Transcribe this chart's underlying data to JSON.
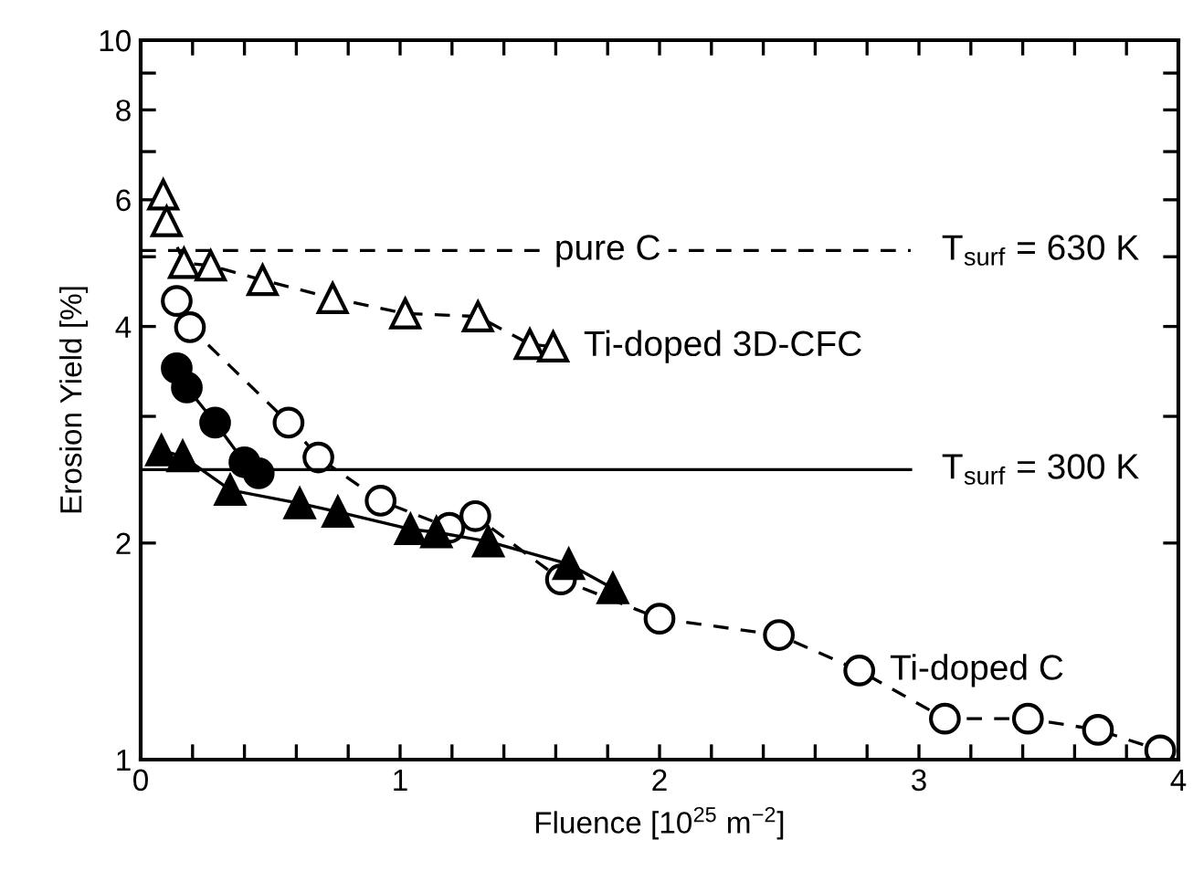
{
  "chart_data": {
    "type": "line",
    "xlabel": "Fluence [10$^{25}$ m$^{−2}$]",
    "ylabel": "Erosion Yield [%]",
    "log": "y",
    "grid": false,
    "xlim": [
      0,
      4
    ],
    "xticks": [
      0,
      {
        "value": 0.2,
        "label": null
      },
      {
        "value": 0.4,
        "label": null
      },
      {
        "value": 0.6,
        "label": null
      },
      {
        "value": 0.8,
        "label": null
      },
      1,
      {
        "value": 1.2,
        "label": null
      },
      {
        "value": 1.4,
        "label": null
      },
      {
        "value": 1.6,
        "label": null
      },
      {
        "value": 1.8,
        "label": null
      },
      2,
      {
        "value": 2.2,
        "label": null
      },
      {
        "value": 2.4,
        "label": null
      },
      {
        "value": 2.6,
        "label": null
      },
      {
        "value": 2.8,
        "label": null
      },
      3,
      {
        "value": 3.2,
        "label": null
      },
      {
        "value": 3.4,
        "label": null
      },
      {
        "value": 3.6,
        "label": null
      },
      {
        "value": 3.8,
        "label": null
      },
      4
    ],
    "ylim": [
      1,
      10
    ],
    "yticks": [
      1,
      2,
      {
        "value": 3,
        "label": null
      },
      4,
      {
        "value": 5,
        "label": null
      },
      6,
      {
        "value": 7,
        "label": null
      },
      8,
      {
        "value": 9,
        "label": null
      },
      10
    ],
    "series": [
      {
        "color": "#000000",
        "marker": "triangle",
        "line_style": "dashed",
        "x": [
          0.087,
          0.1,
          0.167,
          0.27,
          0.47,
          0.74,
          1.02,
          1.3,
          1.5,
          1.59
        ],
        "values": [
          6.1,
          5.6,
          4.9,
          4.86,
          4.64,
          4.38,
          4.17,
          4.13,
          3.78,
          3.75
        ]
      },
      {
        "color": "#000000",
        "marker": "circle",
        "line_style": "dashed",
        "x": [
          0.139,
          0.19,
          0.57,
          0.685,
          0.925,
          1.19,
          1.29,
          1.62,
          2.0,
          2.46,
          2.77,
          3.1,
          3.42,
          3.69,
          3.93
        ],
        "values": [
          4.34,
          3.99,
          2.94,
          2.63,
          2.29,
          2.1,
          2.18,
          1.78,
          1.57,
          1.49,
          1.33,
          1.14,
          1.14,
          1.1,
          1.03
        ]
      },
      {
        "color": "#000000",
        "marker": "circle",
        "line_style": "solid",
        "x": [
          0.139,
          0.178,
          0.287,
          0.4,
          0.455
        ],
        "values": [
          3.5,
          3.29,
          2.94,
          2.59,
          2.5
        ]
      },
      {
        "color": "#000000",
        "marker": "triangle",
        "line_style": "solid",
        "x": [
          0.08,
          0.162,
          0.345,
          0.613,
          0.76,
          1.04,
          1.14,
          1.34,
          1.65,
          1.82
        ],
        "values": [
          2.69,
          2.64,
          2.37,
          2.27,
          2.21,
          2.09,
          2.07,
          2.01,
          1.87,
          1.73
        ]
      }
    ],
    "ref_lines": [
      {
        "axis": "y",
        "value": 5.1,
        "label": "pure C",
        "line_style": "dashed",
        "color": "#000000"
      },
      {
        "axis": "y",
        "value": 2.53,
        "line_style": "solid",
        "color": "#000000"
      }
    ],
    "annotations": [
      {
        "text": "T$_{surf}$ = 630 K",
        "x": 2.97,
        "y": 5.1
      },
      {
        "text": "Ti-doped 3D-CFC",
        "x": 1.59,
        "y": 3.75
      },
      {
        "text": "T$_{surf}$ = 300 K",
        "x": 2.97,
        "y": 2.53
      },
      {
        "text": "Ti-doped C",
        "x": 2.77,
        "y": 1.33
      }
    ]
  }
}
